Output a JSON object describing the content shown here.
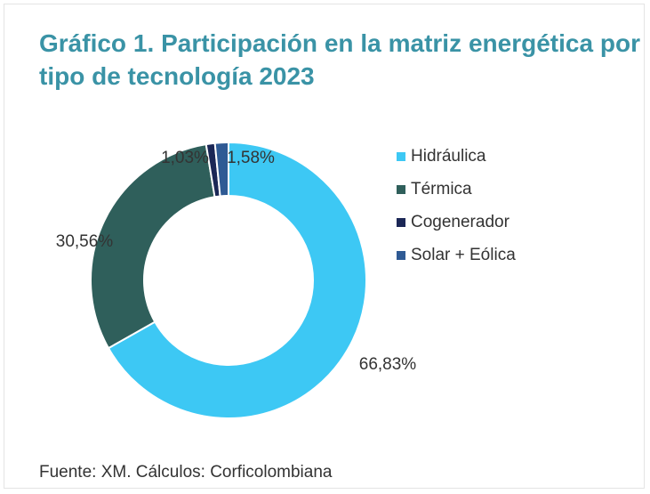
{
  "chart_data": {
    "type": "pie",
    "title": "Gráfico 1. Participación en la matriz energética por tipo de tecnología 2023",
    "categories": [
      "Hidráulica",
      "Térmica",
      "Cogenerador",
      "Solar + Eólica"
    ],
    "values": [
      66.83,
      30.56,
      1.03,
      1.58
    ],
    "value_labels": [
      "66,83%",
      "30,56%",
      "1,03%",
      "1,58%"
    ],
    "colors": [
      "#3dc8f4",
      "#2f5f5b",
      "#1b2756",
      "#2f5a94"
    ],
    "source": "Fuente: XM. Cálculos: Corficolombiana"
  }
}
